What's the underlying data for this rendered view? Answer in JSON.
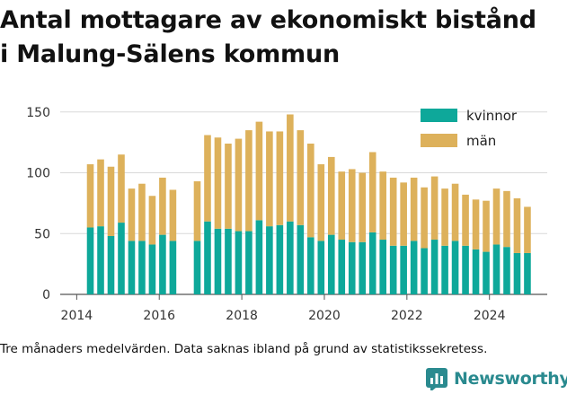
{
  "title": {
    "line1": "Antal mottagare av ekonomiskt bistånd",
    "line2": "i Malung-Sälens kommun"
  },
  "caption": "Tre månaders medelvärden. Data saknas ibland på grund av statistikssekretess.",
  "logo": {
    "text": "Newsworthy"
  },
  "colors": {
    "kvinnor": "#0ea89a",
    "man": "#ddb15b",
    "grid": "#d9d9d9",
    "text": "#333333"
  },
  "chart_data": {
    "type": "bar",
    "stacked": true,
    "x_unit": "year",
    "xlim": [
      2013.6,
      2025.4
    ],
    "ylim": [
      0,
      155
    ],
    "y_ticks": [
      "0",
      "50",
      "100",
      "150"
    ],
    "x_ticks": [
      "2014",
      "2016",
      "2018",
      "2020",
      "2022",
      "2024"
    ],
    "legend": {
      "placement": "top-right"
    },
    "grid": "horizontal",
    "x": [
      2014.33,
      2014.58,
      2014.83,
      2015.08,
      2015.33,
      2015.58,
      2015.83,
      2016.08,
      2016.33,
      2016.58,
      2016.92,
      2017.17,
      2017.42,
      2017.67,
      2017.92,
      2018.17,
      2018.42,
      2018.67,
      2018.92,
      2019.17,
      2019.42,
      2019.67,
      2019.92,
      2020.17,
      2020.42,
      2020.67,
      2020.92,
      2021.17,
      2021.42,
      2021.67,
      2021.92,
      2022.17,
      2022.42,
      2022.67,
      2022.92,
      2023.17,
      2023.42,
      2023.67,
      2023.92,
      2024.17,
      2024.42,
      2024.67,
      2024.92
    ],
    "series": [
      {
        "name": "kvinnor",
        "values": [
          55,
          56,
          48,
          59,
          44,
          44,
          41,
          49,
          44,
          0,
          44,
          60,
          54,
          54,
          52,
          52,
          61,
          56,
          57,
          60,
          57,
          47,
          44,
          49,
          45,
          43,
          43,
          51,
          45,
          40,
          40,
          44,
          38,
          45,
          40,
          44,
          40,
          37,
          35,
          41,
          39,
          34,
          34
        ]
      },
      {
        "name": "män",
        "values": [
          52,
          55,
          57,
          56,
          43,
          47,
          40,
          47,
          42,
          0,
          49,
          71,
          75,
          70,
          76,
          83,
          81,
          78,
          77,
          88,
          78,
          77,
          63,
          64,
          56,
          60,
          57,
          66,
          56,
          56,
          52,
          52,
          50,
          52,
          47,
          47,
          42,
          41,
          42,
          46,
          46,
          45,
          38
        ]
      }
    ]
  }
}
